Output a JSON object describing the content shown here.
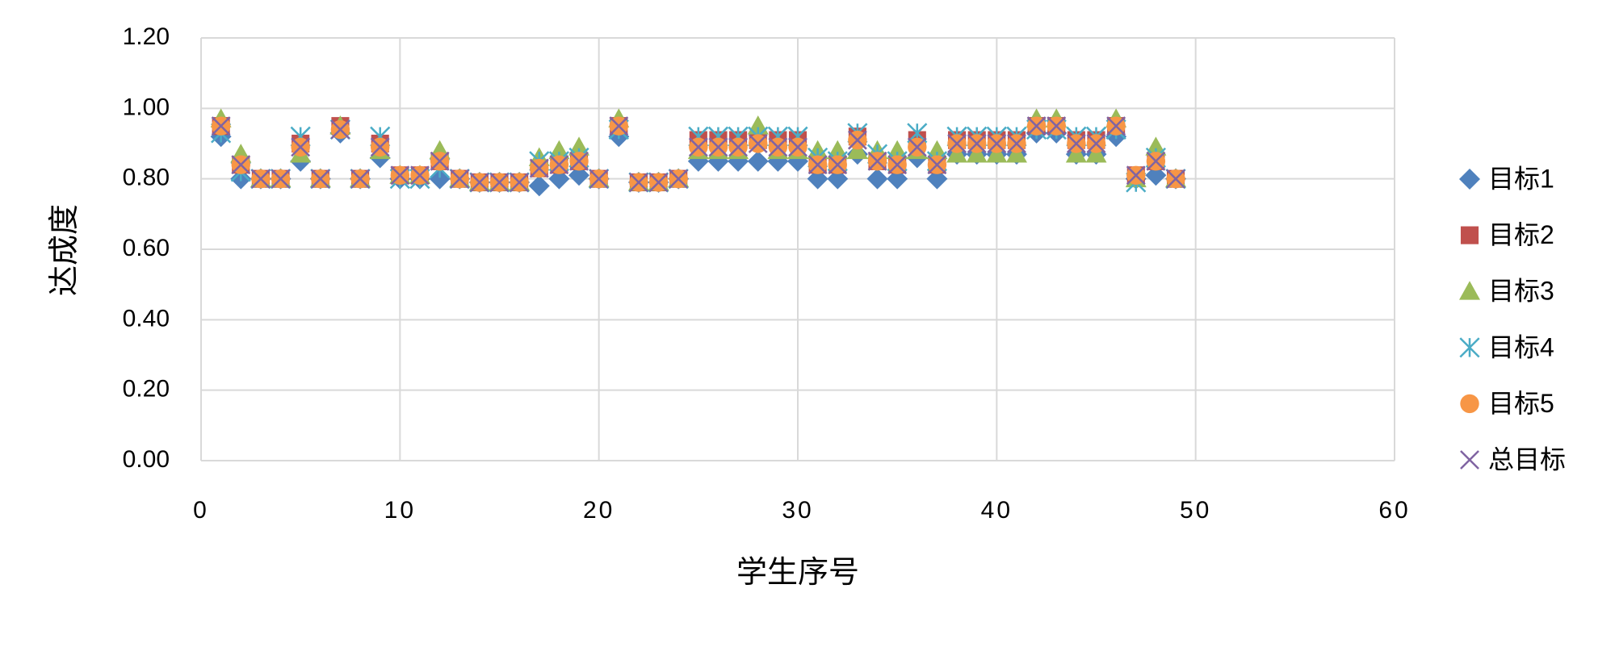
{
  "chart_data": {
    "type": "scatter",
    "x_label": "学生序号",
    "y_label": "达成度",
    "xlim": [
      0,
      60
    ],
    "xticks": [
      0,
      10,
      20,
      30,
      40,
      50,
      60
    ],
    "ylim": [
      0,
      1.2
    ],
    "yticks": [
      {
        "value": 0,
        "label": "0.00"
      },
      {
        "value": 0.2,
        "label": "0.20"
      },
      {
        "value": 0.4,
        "label": "0.40"
      },
      {
        "value": 0.6,
        "label": "0.60"
      },
      {
        "value": 0.8,
        "label": "0.80"
      },
      {
        "value": 1.0,
        "label": "1.00"
      },
      {
        "value": 1.2,
        "label": "1.20"
      }
    ],
    "grid": true,
    "legend": "right",
    "x": [
      1,
      2,
      3,
      4,
      5,
      6,
      7,
      8,
      9,
      10,
      11,
      12,
      13,
      14,
      15,
      16,
      17,
      18,
      19,
      20,
      21,
      22,
      23,
      24,
      25,
      26,
      27,
      28,
      29,
      30,
      31,
      32,
      33,
      34,
      35,
      36,
      37,
      38,
      39,
      40,
      41,
      42,
      43,
      44,
      45,
      46,
      47,
      48,
      49
    ],
    "series": [
      {
        "name": "目标1",
        "color": "#4f81bd",
        "marker": "diamond",
        "values": [
          0.92,
          0.8,
          0.8,
          0.8,
          0.85,
          0.8,
          0.93,
          0.8,
          0.86,
          0.8,
          0.8,
          0.8,
          0.8,
          0.79,
          0.79,
          0.79,
          0.78,
          0.8,
          0.81,
          0.8,
          0.92,
          0.79,
          0.79,
          0.8,
          0.85,
          0.85,
          0.85,
          0.85,
          0.85,
          0.85,
          0.8,
          0.8,
          0.87,
          0.8,
          0.8,
          0.86,
          0.8,
          0.87,
          0.87,
          0.87,
          0.87,
          0.93,
          0.93,
          0.87,
          0.87,
          0.92,
          0.8,
          0.81,
          0.8
        ]
      },
      {
        "name": "目标2",
        "color": "#c0504d",
        "marker": "square",
        "values": [
          0.95,
          0.84,
          0.8,
          0.8,
          0.9,
          0.8,
          0.95,
          0.8,
          0.9,
          0.81,
          0.81,
          0.85,
          0.8,
          0.79,
          0.79,
          0.79,
          0.83,
          0.84,
          0.85,
          0.8,
          0.95,
          0.79,
          0.79,
          0.8,
          0.91,
          0.91,
          0.91,
          0.91,
          0.91,
          0.91,
          0.84,
          0.84,
          0.92,
          0.85,
          0.84,
          0.91,
          0.84,
          0.91,
          0.91,
          0.91,
          0.91,
          0.95,
          0.95,
          0.91,
          0.91,
          0.95,
          0.81,
          0.85,
          0.8
        ]
      },
      {
        "name": "目标3",
        "color": "#9bbb59",
        "marker": "triangle",
        "values": [
          0.97,
          0.87,
          0.8,
          0.8,
          0.87,
          0.8,
          0.95,
          0.8,
          0.88,
          0.81,
          0.81,
          0.88,
          0.8,
          0.79,
          0.79,
          0.79,
          0.86,
          0.88,
          0.89,
          0.8,
          0.97,
          0.79,
          0.79,
          0.8,
          0.88,
          0.88,
          0.88,
          0.95,
          0.88,
          0.88,
          0.88,
          0.88,
          0.88,
          0.88,
          0.88,
          0.88,
          0.88,
          0.87,
          0.87,
          0.87,
          0.87,
          0.97,
          0.97,
          0.87,
          0.87,
          0.97,
          0.8,
          0.89,
          0.8
        ]
      },
      {
        "name": "目标4",
        "color": "#4bacc6",
        "marker": "asterisk",
        "values": [
          0.93,
          0.82,
          0.8,
          0.8,
          0.92,
          0.8,
          0.94,
          0.8,
          0.92,
          0.8,
          0.8,
          0.83,
          0.8,
          0.79,
          0.79,
          0.79,
          0.85,
          0.85,
          0.86,
          0.8,
          0.94,
          0.79,
          0.79,
          0.8,
          0.92,
          0.92,
          0.92,
          0.92,
          0.92,
          0.92,
          0.86,
          0.85,
          0.93,
          0.87,
          0.85,
          0.93,
          0.85,
          0.92,
          0.92,
          0.92,
          0.92,
          0.94,
          0.94,
          0.92,
          0.92,
          0.94,
          0.79,
          0.86,
          0.8
        ]
      },
      {
        "name": "目标5",
        "color": "#f79646",
        "marker": "circle",
        "values": [
          0.95,
          0.84,
          0.8,
          0.8,
          0.89,
          0.8,
          0.94,
          0.8,
          0.89,
          0.81,
          0.81,
          0.85,
          0.8,
          0.79,
          0.79,
          0.79,
          0.83,
          0.84,
          0.85,
          0.8,
          0.95,
          0.79,
          0.79,
          0.8,
          0.89,
          0.89,
          0.89,
          0.9,
          0.89,
          0.89,
          0.84,
          0.84,
          0.91,
          0.85,
          0.84,
          0.89,
          0.84,
          0.9,
          0.9,
          0.9,
          0.9,
          0.95,
          0.95,
          0.9,
          0.9,
          0.95,
          0.81,
          0.85,
          0.8
        ]
      },
      {
        "name": "总目标",
        "color": "#8064a2",
        "marker": "x",
        "values": [
          0.95,
          0.84,
          0.8,
          0.8,
          0.89,
          0.8,
          0.94,
          0.8,
          0.89,
          0.81,
          0.81,
          0.85,
          0.8,
          0.79,
          0.79,
          0.79,
          0.83,
          0.84,
          0.85,
          0.8,
          0.95,
          0.79,
          0.79,
          0.8,
          0.89,
          0.89,
          0.89,
          0.9,
          0.89,
          0.89,
          0.84,
          0.84,
          0.91,
          0.85,
          0.84,
          0.89,
          0.84,
          0.9,
          0.9,
          0.9,
          0.9,
          0.95,
          0.95,
          0.9,
          0.9,
          0.95,
          0.81,
          0.85,
          0.8
        ]
      }
    ]
  }
}
